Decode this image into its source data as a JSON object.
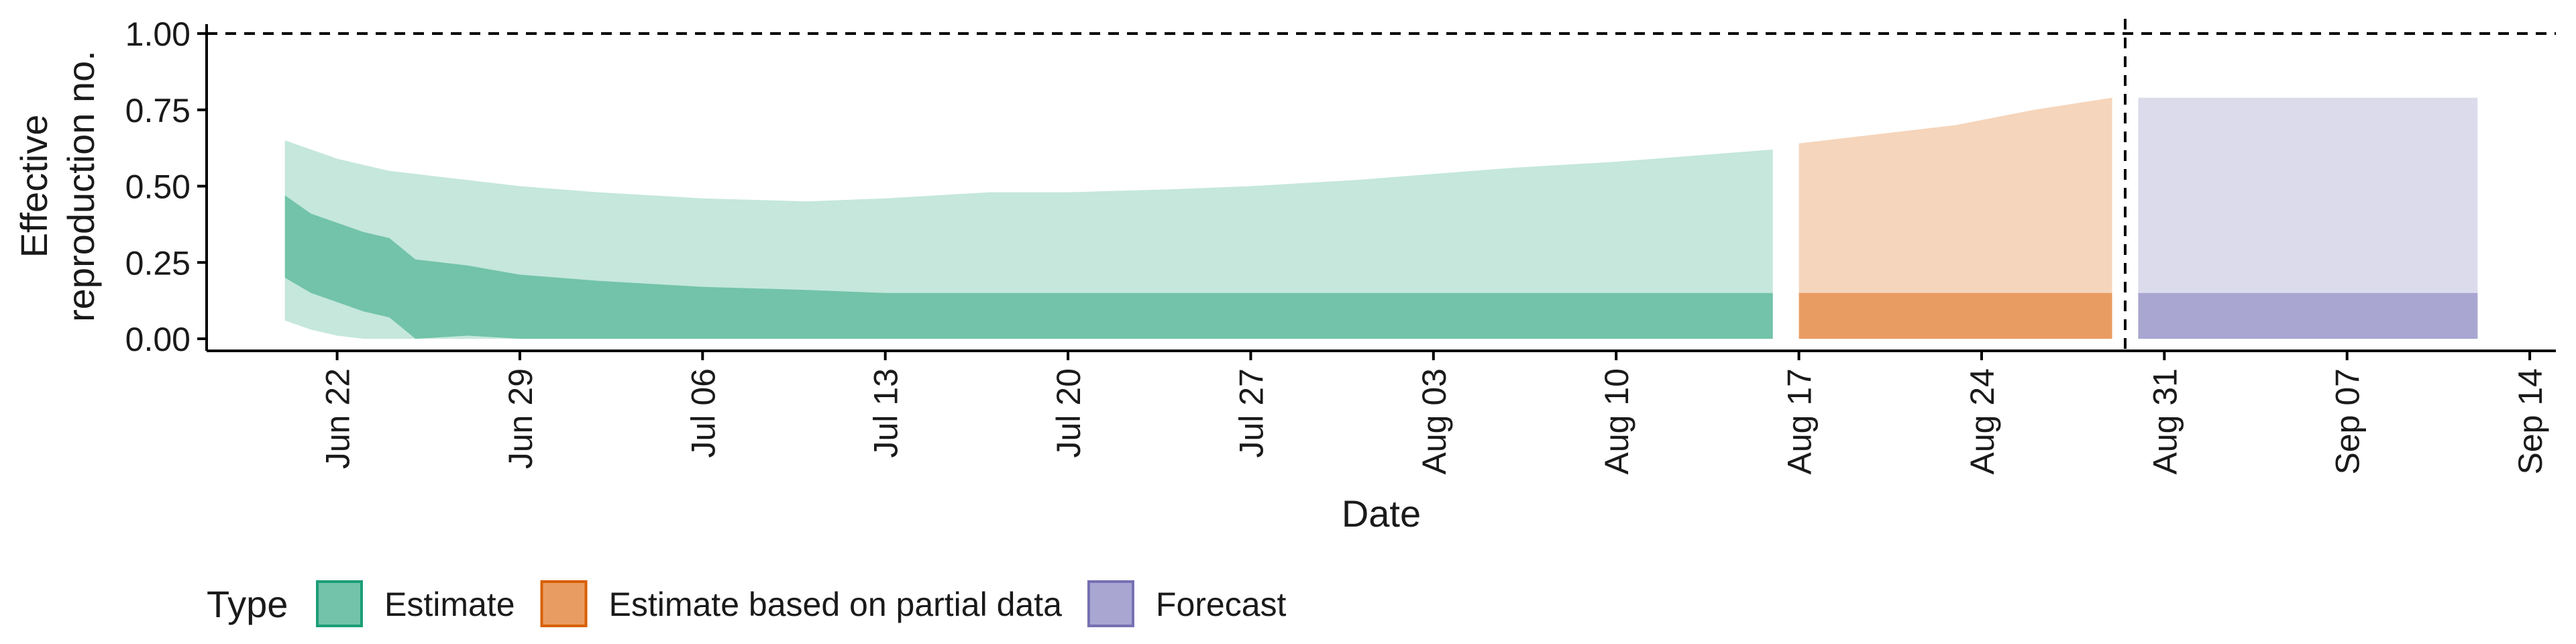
{
  "chart_data": {
    "type": "area",
    "title": "",
    "xlabel": "Date",
    "ylabel": [
      "Effective",
      "reproduction no."
    ],
    "ylim": [
      0,
      1
    ],
    "xlim": [
      "2020-06-17",
      "2020-09-15"
    ],
    "yticks": [
      {
        "value": 0,
        "label": "0.00"
      },
      {
        "value": 0.25,
        "label": "0.25"
      },
      {
        "value": 0.5,
        "label": "0.50"
      },
      {
        "value": 0.75,
        "label": "0.75"
      },
      {
        "value": 1,
        "label": "1.00"
      }
    ],
    "xticks": [
      {
        "date": "2020-06-22",
        "label": "Jun 22"
      },
      {
        "date": "2020-06-29",
        "label": "Jun 29"
      },
      {
        "date": "2020-07-06",
        "label": "Jul 06"
      },
      {
        "date": "2020-07-13",
        "label": "Jul 13"
      },
      {
        "date": "2020-07-20",
        "label": "Jul 20"
      },
      {
        "date": "2020-07-27",
        "label": "Jul 27"
      },
      {
        "date": "2020-08-03",
        "label": "Aug 03"
      },
      {
        "date": "2020-08-10",
        "label": "Aug 10"
      },
      {
        "date": "2020-08-17",
        "label": "Aug 17"
      },
      {
        "date": "2020-08-24",
        "label": "Aug 24"
      },
      {
        "date": "2020-08-31",
        "label": "Aug 31"
      },
      {
        "date": "2020-09-07",
        "label": "Sep 07"
      },
      {
        "date": "2020-09-14",
        "label": "Sep 14"
      }
    ],
    "reference_lines": {
      "horizontal": 1.0,
      "vertical_date": "2020-08-29"
    },
    "grid": false,
    "legend": {
      "title": "Type",
      "position": "bottom-left",
      "items": [
        {
          "label": "Estimate",
          "fill": "#72c3a9",
          "stroke": "#1b9e77"
        },
        {
          "label": "Estimate based on partial data",
          "fill": "#e99c61",
          "stroke": "#d95f02"
        },
        {
          "label": "Forecast",
          "fill": "#a9a6d2",
          "stroke": "#7570b3"
        }
      ]
    },
    "series": [
      {
        "name": "Estimate",
        "outer_fill": "#c5e7dc",
        "inner_fill": "#72c3a9",
        "points": [
          {
            "date": "2020-06-20",
            "lo90": 0.06,
            "lo50": 0.2,
            "hi50": 0.47,
            "hi90": 0.65
          },
          {
            "date": "2020-06-21",
            "lo90": 0.03,
            "lo50": 0.15,
            "hi50": 0.41,
            "hi90": 0.62
          },
          {
            "date": "2020-06-22",
            "lo90": 0.01,
            "lo50": 0.12,
            "hi50": 0.38,
            "hi90": 0.59
          },
          {
            "date": "2020-06-23",
            "lo90": 0.0,
            "lo50": 0.09,
            "hi50": 0.35,
            "hi90": 0.57
          },
          {
            "date": "2020-06-24",
            "lo90": 0.0,
            "lo50": 0.07,
            "hi50": 0.33,
            "hi90": 0.55
          },
          {
            "date": "2020-06-25",
            "lo90": 0.0,
            "lo50": 0.0,
            "hi50": 0.26,
            "hi90": 0.54
          },
          {
            "date": "2020-06-27",
            "lo90": 0.0,
            "lo50": 0.01,
            "hi50": 0.24,
            "hi90": 0.52
          },
          {
            "date": "2020-06-29",
            "lo90": 0.0,
            "lo50": 0.0,
            "hi50": 0.21,
            "hi90": 0.5
          },
          {
            "date": "2020-07-02",
            "lo90": 0.0,
            "lo50": 0.0,
            "hi50": 0.19,
            "hi90": 0.48
          },
          {
            "date": "2020-07-06",
            "lo90": 0.0,
            "lo50": 0.0,
            "hi50": 0.17,
            "hi90": 0.46
          },
          {
            "date": "2020-07-10",
            "lo90": 0.0,
            "lo50": 0.0,
            "hi50": 0.16,
            "hi90": 0.45
          },
          {
            "date": "2020-07-13",
            "lo90": 0.0,
            "lo50": 0.0,
            "hi50": 0.15,
            "hi90": 0.46
          },
          {
            "date": "2020-07-17",
            "lo90": 0.0,
            "lo50": 0.0,
            "hi50": 0.15,
            "hi90": 0.48
          },
          {
            "date": "2020-07-20",
            "lo90": 0.0,
            "lo50": 0.0,
            "hi50": 0.15,
            "hi90": 0.48
          },
          {
            "date": "2020-07-24",
            "lo90": 0.0,
            "lo50": 0.0,
            "hi50": 0.15,
            "hi90": 0.49
          },
          {
            "date": "2020-07-27",
            "lo90": 0.0,
            "lo50": 0.0,
            "hi50": 0.15,
            "hi90": 0.5
          },
          {
            "date": "2020-07-31",
            "lo90": 0.0,
            "lo50": 0.0,
            "hi50": 0.15,
            "hi90": 0.52
          },
          {
            "date": "2020-08-03",
            "lo90": 0.0,
            "lo50": 0.0,
            "hi50": 0.15,
            "hi90": 0.54
          },
          {
            "date": "2020-08-06",
            "lo90": 0.0,
            "lo50": 0.0,
            "hi50": 0.15,
            "hi90": 0.56
          },
          {
            "date": "2020-08-10",
            "lo90": 0.0,
            "lo50": 0.0,
            "hi50": 0.15,
            "hi90": 0.58
          },
          {
            "date": "2020-08-13",
            "lo90": 0.0,
            "lo50": 0.0,
            "hi50": 0.15,
            "hi90": 0.6
          },
          {
            "date": "2020-08-16",
            "lo90": 0.0,
            "lo50": 0.0,
            "hi50": 0.15,
            "hi90": 0.62
          }
        ]
      },
      {
        "name": "Estimate based on partial data",
        "outer_fill": "#f5d5bb",
        "inner_fill": "#e99c61",
        "points": [
          {
            "date": "2020-08-17",
            "lo90": 0.0,
            "lo50": 0.0,
            "hi50": 0.15,
            "hi90": 0.64
          },
          {
            "date": "2020-08-20",
            "lo90": 0.0,
            "lo50": 0.0,
            "hi50": 0.15,
            "hi90": 0.67
          },
          {
            "date": "2020-08-23",
            "lo90": 0.0,
            "lo50": 0.0,
            "hi50": 0.15,
            "hi90": 0.7
          },
          {
            "date": "2020-08-26",
            "lo90": 0.0,
            "lo50": 0.0,
            "hi50": 0.15,
            "hi90": 0.75
          },
          {
            "date": "2020-08-29",
            "lo90": 0.0,
            "lo50": 0.0,
            "hi50": 0.15,
            "hi90": 0.79
          }
        ]
      },
      {
        "name": "Forecast",
        "outer_fill": "#dcdbec",
        "inner_fill": "#a9a6d2",
        "points": [
          {
            "date": "2020-08-30",
            "lo90": 0.0,
            "lo50": 0.0,
            "hi50": 0.15,
            "hi90": 0.79
          },
          {
            "date": "2020-09-12",
            "lo90": 0.0,
            "lo50": 0.0,
            "hi50": 0.15,
            "hi90": 0.79
          }
        ]
      }
    ]
  }
}
